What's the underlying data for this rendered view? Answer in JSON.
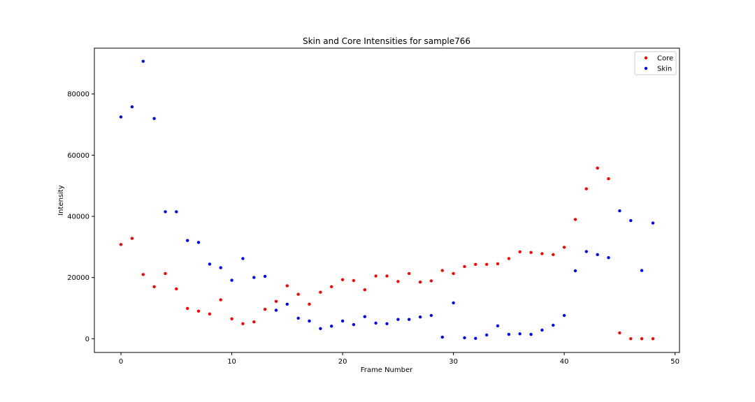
{
  "chart_data": {
    "type": "scatter",
    "title": "Skin and Core Intensities for sample766",
    "xlabel": "Frame Number",
    "ylabel": "Intensity",
    "xlim": [
      -2.4,
      50.4
    ],
    "ylim": [
      -4500,
      95000
    ],
    "xticks": [
      0,
      10,
      20,
      30,
      40,
      50
    ],
    "yticks": [
      0,
      20000,
      40000,
      60000,
      80000
    ],
    "grid": false,
    "legend": "top-right",
    "series": [
      {
        "name": "Core",
        "color": "#ff0000",
        "x": [
          0,
          1,
          2,
          3,
          4,
          5,
          6,
          7,
          8,
          9,
          10,
          11,
          12,
          13,
          14,
          15,
          16,
          17,
          18,
          19,
          20,
          21,
          22,
          23,
          24,
          25,
          26,
          27,
          28,
          29,
          30,
          31,
          32,
          33,
          34,
          35,
          36,
          37,
          38,
          39,
          40,
          41,
          42,
          43,
          44,
          45,
          46,
          47,
          48
        ],
        "y": [
          30800,
          32800,
          21000,
          17000,
          21300,
          16300,
          9900,
          9000,
          8100,
          12700,
          6500,
          4900,
          5500,
          9600,
          12200,
          17300,
          14500,
          11300,
          15200,
          17000,
          19300,
          19000,
          16000,
          20500,
          20500,
          18700,
          21300,
          18500,
          18900,
          22300,
          21300,
          23600,
          24300,
          24300,
          24500,
          26200,
          28400,
          28200,
          27800,
          27500,
          29900,
          39000,
          49000,
          55800,
          52300,
          1900,
          0,
          0,
          0
        ]
      },
      {
        "name": "Skin",
        "color": "#0000ff",
        "x": [
          0,
          1,
          2,
          3,
          4,
          5,
          6,
          7,
          8,
          9,
          10,
          11,
          12,
          13,
          14,
          15,
          16,
          17,
          18,
          19,
          20,
          21,
          22,
          23,
          24,
          25,
          26,
          27,
          28,
          29,
          30,
          31,
          32,
          33,
          34,
          35,
          36,
          37,
          38,
          39,
          40,
          41,
          42,
          43,
          44,
          45,
          46,
          47,
          48
        ],
        "y": [
          72500,
          75800,
          90700,
          72000,
          41500,
          41500,
          32100,
          31500,
          24400,
          23200,
          19100,
          26200,
          20000,
          20400,
          9300,
          11300,
          6700,
          5800,
          3300,
          4100,
          5800,
          4600,
          7200,
          5100,
          4900,
          6300,
          6300,
          7100,
          7600,
          500,
          11700,
          300,
          100,
          1200,
          4200,
          1400,
          1600,
          1400,
          2800,
          4400,
          7600,
          22200,
          28500,
          27500,
          26500,
          41800,
          38600,
          22300,
          37800
        ]
      }
    ]
  }
}
